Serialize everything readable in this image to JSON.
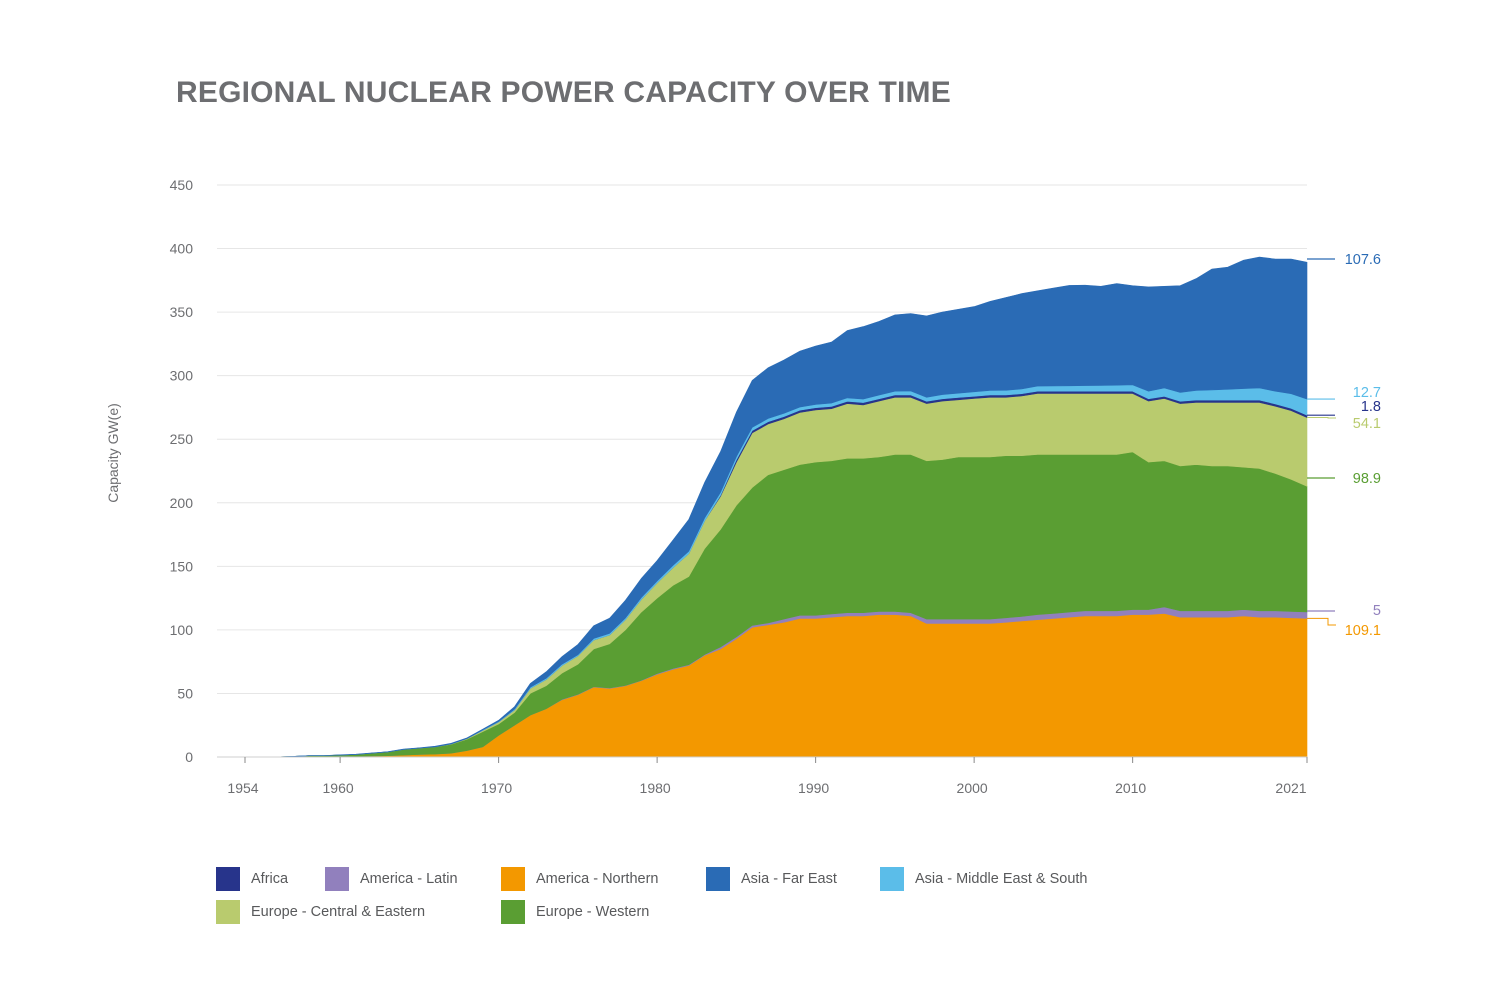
{
  "chart_data": {
    "type": "area",
    "stacked": true,
    "title": "REGIONAL NUCLEAR POWER CAPACITY OVER TIME",
    "xlabel": "",
    "ylabel": "Capacity GW(e)",
    "xlim": [
      1954,
      2021
    ],
    "ylim": [
      0,
      450
    ],
    "y_ticks": [
      0,
      50,
      100,
      150,
      200,
      250,
      300,
      350,
      400,
      450
    ],
    "x_ticks": [
      1954,
      1960,
      1970,
      1980,
      1990,
      2000,
      2010,
      2021
    ],
    "grid": "horizontal",
    "legend_position": "bottom-left",
    "x": [
      1954,
      1955,
      1956,
      1957,
      1958,
      1959,
      1960,
      1961,
      1962,
      1963,
      1964,
      1965,
      1966,
      1967,
      1968,
      1969,
      1970,
      1971,
      1972,
      1973,
      1974,
      1975,
      1976,
      1977,
      1978,
      1979,
      1980,
      1981,
      1982,
      1983,
      1984,
      1985,
      1986,
      1987,
      1988,
      1989,
      1990,
      1991,
      1992,
      1993,
      1994,
      1995,
      1996,
      1997,
      1998,
      1999,
      2000,
      2001,
      2002,
      2003,
      2004,
      2005,
      2006,
      2007,
      2008,
      2009,
      2010,
      2011,
      2012,
      2013,
      2014,
      2015,
      2016,
      2017,
      2018,
      2019,
      2020,
      2021
    ],
    "series": [
      {
        "name": "America - Northern",
        "color": "#f39800",
        "end_label": "109.1",
        "values": [
          0,
          0,
          0,
          0.1,
          0.1,
          0.2,
          0.4,
          0.6,
          0.8,
          1,
          1.5,
          2,
          2.3,
          3,
          5,
          8,
          17,
          25,
          33,
          38,
          45,
          49,
          55,
          54,
          56,
          60,
          65,
          69,
          72,
          80,
          85,
          93,
          102,
          104,
          106,
          109,
          109,
          110,
          111,
          111,
          112,
          112,
          111,
          105,
          105,
          105,
          105,
          105,
          106,
          107,
          108,
          109,
          110,
          111,
          111,
          111,
          112,
          112,
          113,
          110,
          110,
          110,
          110,
          111,
          110,
          110,
          109.5,
          109.1
        ]
      },
      {
        "name": "America - Latin",
        "color": "#9180bd",
        "end_label": "5",
        "values": [
          0,
          0,
          0,
          0,
          0,
          0,
          0,
          0,
          0,
          0,
          0,
          0,
          0,
          0,
          0,
          0,
          0,
          0,
          0,
          0,
          0.3,
          0.3,
          0.3,
          0.3,
          0.3,
          0.3,
          0.6,
          0.6,
          0.6,
          0.6,
          1.5,
          1.5,
          1.5,
          1.5,
          2.5,
          2.5,
          2.5,
          2.5,
          2.5,
          2.5,
          2.5,
          2.5,
          2.5,
          3.5,
          3.5,
          3.5,
          3.5,
          3.5,
          3.5,
          3.5,
          4,
          4,
          4,
          4,
          4,
          4,
          4,
          4,
          5,
          5,
          5,
          5,
          5,
          5,
          5,
          5,
          5,
          5
        ]
      },
      {
        "name": "Europe - Western",
        "color": "#5a9e33",
        "end_label": "98.9",
        "values": [
          0,
          0,
          0.1,
          0.4,
          0.9,
          1,
          1.1,
          1.4,
          2.2,
          3,
          4.5,
          5,
          5.7,
          7,
          9,
          12,
          9,
          10,
          17,
          18,
          20.7,
          23.7,
          29.7,
          34.7,
          43.7,
          53.7,
          59.4,
          65.4,
          69.4,
          83.4,
          92.5,
          103.5,
          108.5,
          116.5,
          117.5,
          118.5,
          120.5,
          120.5,
          121.5,
          121.5,
          121.5,
          123.5,
          124.5,
          124.5,
          125.5,
          127.5,
          127.5,
          127.5,
          127.5,
          126.5,
          126,
          125,
          124,
          123,
          123,
          123,
          124,
          116,
          115,
          114,
          115,
          114,
          114,
          112,
          112,
          108,
          104,
          98.9
        ]
      },
      {
        "name": "Europe - Central & Eastern",
        "color": "#b9cb6e",
        "end_label": "54.1",
        "values": [
          0,
          0,
          0,
          0,
          0,
          0,
          0,
          0,
          0,
          0,
          0,
          0,
          0,
          0.3,
          0.5,
          1,
          1.5,
          2,
          4,
          5,
          6,
          6.5,
          7,
          7,
          8,
          10,
          12,
          14,
          18,
          22,
          26,
          34,
          43,
          40,
          40,
          41,
          41,
          41,
          43,
          42,
          44,
          45,
          45,
          45,
          46,
          45,
          46,
          47,
          46,
          47,
          48,
          48,
          48,
          48,
          48,
          48,
          46,
          48,
          49,
          49,
          49,
          50,
          50,
          51,
          52,
          53,
          54,
          54.1
        ]
      },
      {
        "name": "Africa",
        "color": "#27348b",
        "end_label": "1.8",
        "values": [
          0,
          0,
          0,
          0,
          0,
          0,
          0,
          0,
          0,
          0,
          0,
          0,
          0,
          0,
          0,
          0,
          0,
          0,
          0,
          0,
          0,
          0,
          0,
          0,
          0,
          0,
          0,
          0,
          0,
          0,
          0.9,
          1.8,
          1.8,
          1.8,
          1.8,
          1.8,
          1.8,
          1.8,
          1.8,
          1.8,
          1.8,
          1.8,
          1.8,
          1.8,
          1.8,
          1.8,
          1.8,
          1.8,
          1.8,
          1.8,
          1.8,
          1.8,
          1.8,
          1.8,
          1.8,
          1.8,
          1.8,
          1.8,
          1.8,
          1.8,
          1.8,
          1.8,
          1.8,
          1.8,
          1.8,
          1.8,
          1.8,
          1.8
        ]
      },
      {
        "name": "Asia - Middle East & South",
        "color": "#5bbde9",
        "end_label": "12.7",
        "values": [
          0,
          0,
          0,
          0,
          0,
          0,
          0,
          0,
          0,
          0,
          0,
          0,
          0,
          0,
          0,
          0.4,
          0.4,
          0.6,
          0.8,
          1,
          1,
          1,
          1.2,
          1.2,
          1.3,
          1.4,
          1.5,
          1.7,
          1.9,
          2.1,
          2.3,
          2.5,
          2.5,
          2.5,
          2.5,
          2.5,
          2.5,
          2.6,
          2.7,
          2.8,
          2.9,
          3,
          3.1,
          3.2,
          3.3,
          3.4,
          3.5,
          3.6,
          3.7,
          3.8,
          4,
          4.1,
          4.2,
          4.4,
          4.5,
          4.7,
          5,
          6,
          6.5,
          7,
          7.5,
          8,
          8.5,
          9,
          9.5,
          10,
          11.5,
          12.7
        ]
      },
      {
        "name": "Asia - Far East",
        "color": "#2a6bb5",
        "end_label": "107.6",
        "values": [
          0,
          0,
          0,
          0,
          0,
          0,
          0.2,
          0.2,
          0.2,
          0.2,
          0.2,
          0.2,
          0.5,
          0.5,
          0.5,
          0.5,
          1,
          2,
          3,
          5,
          6,
          8,
          10,
          12,
          14,
          15,
          16,
          20,
          25,
          28,
          32,
          35,
          37,
          40,
          42,
          44,
          46,
          48,
          53,
          57,
          58,
          60,
          61,
          64,
          65,
          66,
          67,
          70,
          73,
          75,
          75,
          77,
          79,
          79,
          78,
          80,
          78,
          82,
          80,
          84,
          88,
          95,
          96,
          101,
          103,
          104,
          106,
          107.6
        ]
      }
    ]
  }
}
